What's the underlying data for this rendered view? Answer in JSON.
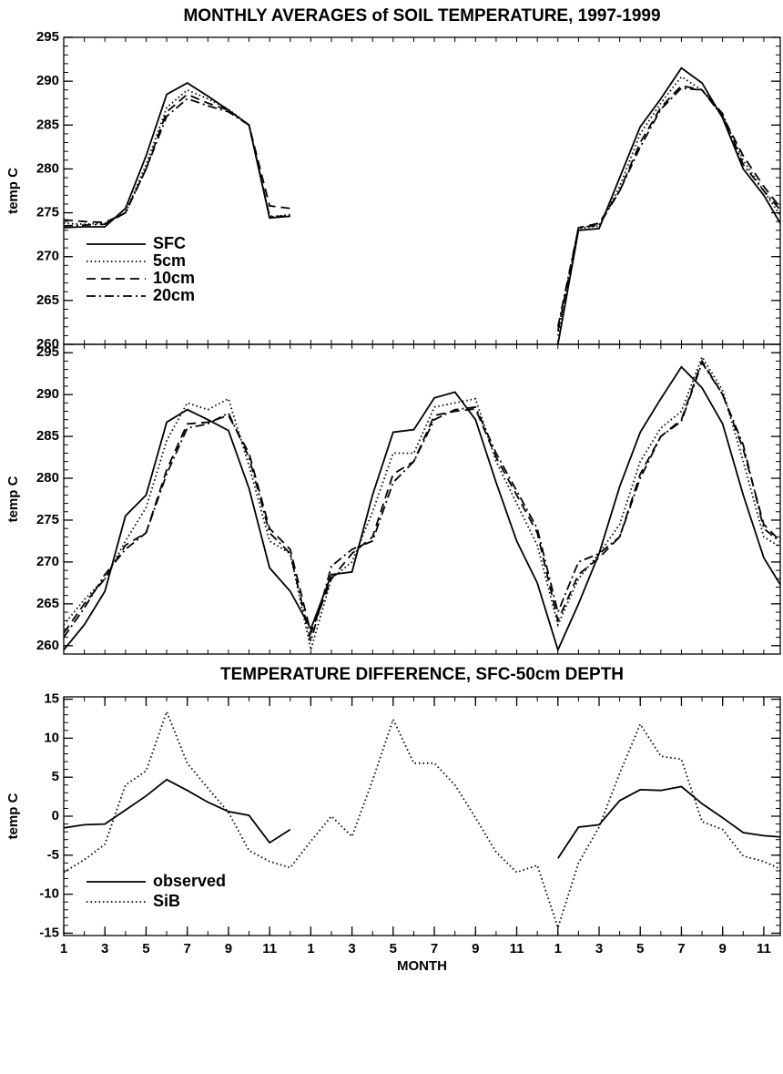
{
  "chart_data": [
    {
      "type": "line",
      "title": "MONTHLY AVERAGES of SOIL TEMPERATURE, 1997-1999",
      "y_label": "temp C",
      "x": [
        1,
        2,
        3,
        4,
        5,
        6,
        7,
        8,
        9,
        10,
        11,
        12,
        13,
        14,
        15,
        16,
        17,
        18,
        19,
        20,
        21,
        22,
        23,
        24,
        25,
        26,
        27,
        28,
        29,
        30,
        31,
        32,
        33,
        34,
        35,
        36
      ],
      "xlim": [
        1,
        35.8
      ],
      "ylim": [
        260,
        295
      ],
      "yticks": [
        260,
        265,
        270,
        275,
        280,
        285,
        290,
        295
      ],
      "legend": "lower left",
      "series": [
        {
          "name": "SFC",
          "color": "#000000",
          "linestyle": "solid",
          "values": [
            273.3,
            273.4,
            273.4,
            275.5,
            281.5,
            288.5,
            289.8,
            288.3,
            286.7,
            285.0,
            274.4,
            274.6,
            null,
            null,
            null,
            null,
            null,
            null,
            null,
            null,
            null,
            null,
            null,
            null,
            260.0,
            273.0,
            273.2,
            279.0,
            284.8,
            288.0,
            291.5,
            289.8,
            285.8,
            280.0,
            277.0,
            273.0
          ]
        },
        {
          "name": "5cm",
          "color": "#000000",
          "linestyle": "dotted",
          "values": [
            273.8,
            273.7,
            273.8,
            275.0,
            280.5,
            287.0,
            289.0,
            288.0,
            286.8,
            285.0,
            274.5,
            274.8,
            null,
            null,
            null,
            null,
            null,
            null,
            null,
            null,
            null,
            null,
            null,
            null,
            261.0,
            273.2,
            273.5,
            278.0,
            284.0,
            287.5,
            290.5,
            289.0,
            286.0,
            281.0,
            277.5,
            274.0
          ]
        },
        {
          "name": "10cm",
          "color": "#000000",
          "linestyle": "dashed",
          "values": [
            274.2,
            274.0,
            273.9,
            275.0,
            280.0,
            286.5,
            288.5,
            287.5,
            286.7,
            285.0,
            275.8,
            275.5,
            null,
            null,
            null,
            null,
            null,
            null,
            null,
            null,
            null,
            null,
            null,
            null,
            261.5,
            273.3,
            273.8,
            277.5,
            283.0,
            287.0,
            289.5,
            289.0,
            286.0,
            281.5,
            278.0,
            275.0
          ]
        },
        {
          "name": "20cm",
          "color": "#000000",
          "linestyle": "dashdot",
          "values": [
            273.5,
            273.6,
            273.7,
            275.0,
            280.0,
            286.0,
            288.0,
            287.2,
            286.5,
            285.0,
            274.6,
            274.6,
            null,
            null,
            null,
            null,
            null,
            null,
            null,
            null,
            null,
            null,
            null,
            null,
            262.0,
            273.3,
            273.6,
            277.5,
            282.5,
            286.8,
            289.2,
            289.0,
            286.3,
            280.5,
            277.5,
            274.8
          ]
        }
      ]
    },
    {
      "type": "line",
      "y_label": "temp C",
      "x": [
        1,
        2,
        3,
        4,
        5,
        6,
        7,
        8,
        9,
        10,
        11,
        12,
        13,
        14,
        15,
        16,
        17,
        18,
        19,
        20,
        21,
        22,
        23,
        24,
        25,
        26,
        27,
        28,
        29,
        30,
        31,
        32,
        33,
        34,
        35,
        36
      ],
      "xlim": [
        1,
        35.8
      ],
      "ylim": [
        259,
        296
      ],
      "yticks": [
        260,
        265,
        270,
        275,
        280,
        285,
        290,
        295
      ],
      "series": [
        {
          "color": "#000000",
          "linestyle": "solid",
          "values": [
            259.5,
            262.5,
            266.5,
            275.5,
            278.0,
            286.7,
            288.2,
            287.0,
            285.7,
            278.8,
            269.3,
            266.5,
            262.0,
            268.5,
            268.8,
            278.0,
            285.5,
            285.8,
            289.6,
            290.3,
            287.0,
            279.5,
            272.5,
            267.5,
            259.5,
            265.0,
            271.0,
            279.0,
            285.5,
            289.5,
            293.3,
            290.8,
            286.5,
            278.0,
            270.5,
            266.5
          ]
        },
        {
          "color": "#000000",
          "linestyle": "dotted",
          "values": [
            262.5,
            265.5,
            268.0,
            272.5,
            276.5,
            284.5,
            289.0,
            288.2,
            289.5,
            281.5,
            272.5,
            271.0,
            259.5,
            268.0,
            270.0,
            276.0,
            283.0,
            283.0,
            288.5,
            289.0,
            289.5,
            282.0,
            277.0,
            272.0,
            262.5,
            268.0,
            271.0,
            274.5,
            282.0,
            286.0,
            288.0,
            294.5,
            290.5,
            282.0,
            273.0,
            271.5
          ]
        },
        {
          "color": "#000000",
          "linestyle": "dashed",
          "values": [
            261.5,
            265.0,
            268.0,
            272.0,
            273.5,
            281.0,
            286.5,
            286.7,
            287.5,
            283.0,
            274.0,
            271.5,
            261.5,
            268.0,
            271.0,
            273.0,
            280.5,
            282.0,
            287.5,
            288.0,
            288.3,
            282.5,
            278.0,
            273.5,
            263.0,
            268.5,
            270.5,
            273.0,
            280.5,
            285.0,
            287.0,
            294.0,
            290.0,
            283.5,
            274.5,
            272.0
          ]
        },
        {
          "color": "#000000",
          "linestyle": "dashdot",
          "values": [
            261.0,
            264.5,
            268.5,
            271.5,
            273.5,
            280.5,
            286.0,
            286.5,
            287.8,
            282.5,
            273.5,
            271.0,
            260.5,
            269.5,
            271.5,
            272.5,
            279.5,
            282.0,
            287.0,
            288.2,
            288.5,
            283.0,
            278.5,
            274.0,
            264.0,
            270.0,
            271.0,
            273.0,
            280.0,
            285.0,
            286.8,
            293.8,
            290.0,
            284.0,
            274.0,
            272.0
          ]
        }
      ]
    },
    {
      "type": "line",
      "title": "TEMPERATURE DIFFERENCE, SFC-50cm DEPTH",
      "y_label": "temp C",
      "x_label": "MONTH",
      "x": [
        1,
        2,
        3,
        4,
        5,
        6,
        7,
        8,
        9,
        10,
        11,
        12,
        13,
        14,
        15,
        16,
        17,
        18,
        19,
        20,
        21,
        22,
        23,
        24,
        25,
        26,
        27,
        28,
        29,
        30,
        31,
        32,
        33,
        34,
        35,
        36
      ],
      "xlim": [
        1,
        35.8
      ],
      "ylim": [
        -15.3,
        15.3
      ],
      "yticks": [
        -15,
        -10,
        -5,
        0,
        5,
        10,
        15
      ],
      "legend": "lower left",
      "xticks": [
        {
          "value": 1,
          "label": "1"
        },
        {
          "value": 3,
          "label": "3"
        },
        {
          "value": 5,
          "label": "5"
        },
        {
          "value": 7,
          "label": "7"
        },
        {
          "value": 9,
          "label": "9"
        },
        {
          "value": 11,
          "label": "11"
        },
        {
          "value": 13,
          "label": "1"
        },
        {
          "value": 15,
          "label": "3"
        },
        {
          "value": 17,
          "label": "5"
        },
        {
          "value": 19,
          "label": "7"
        },
        {
          "value": 21,
          "label": "9"
        },
        {
          "value": 23,
          "label": "11"
        },
        {
          "value": 25,
          "label": "1"
        },
        {
          "value": 27,
          "label": "3"
        },
        {
          "value": 29,
          "label": "5"
        },
        {
          "value": 31,
          "label": "7"
        },
        {
          "value": 33,
          "label": "9"
        },
        {
          "value": 35,
          "label": "11"
        }
      ],
      "series": [
        {
          "name": "observed",
          "color": "#000000",
          "linestyle": "solid",
          "values": [
            -1.5,
            -1.1,
            -1.0,
            0.8,
            2.6,
            4.7,
            3.3,
            1.8,
            0.6,
            0.1,
            -3.4,
            -1.7,
            null,
            null,
            null,
            null,
            null,
            null,
            null,
            null,
            null,
            null,
            null,
            null,
            -5.4,
            -1.4,
            -1.1,
            2.0,
            3.4,
            3.3,
            3.8,
            1.6,
            -0.2,
            -2.1,
            -2.5,
            -2.7
          ]
        },
        {
          "name": "SiB",
          "color": "#000000",
          "linestyle": "dotted",
          "values": [
            -7.2,
            -5.6,
            -3.6,
            4.0,
            5.8,
            13.4,
            6.8,
            3.6,
            0.5,
            -4.4,
            -5.8,
            -6.6,
            -3.2,
            0.0,
            -2.6,
            4.6,
            12.4,
            6.8,
            6.8,
            4.0,
            -0.2,
            -4.6,
            -7.2,
            -6.3,
            -14.3,
            -6.0,
            -1.4,
            5.5,
            11.8,
            7.7,
            7.3,
            -0.7,
            -1.7,
            -5.1,
            -5.8,
            -7.0
          ]
        }
      ]
    }
  ]
}
